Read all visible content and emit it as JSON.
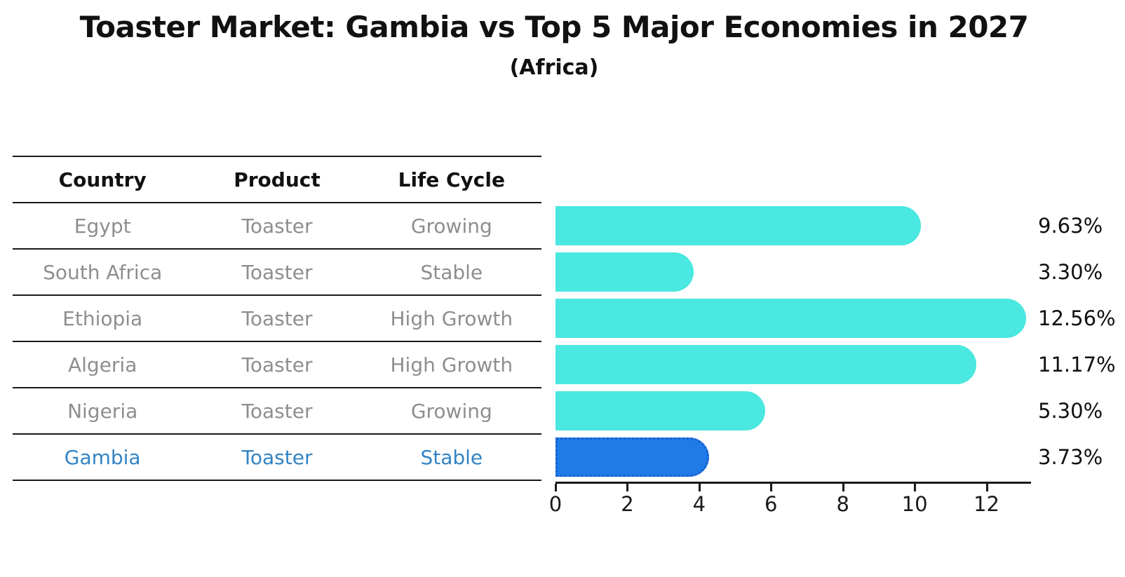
{
  "title": "Toaster Market: Gambia vs Top 5 Major Economies in 2027",
  "subtitle": "(Africa)",
  "table": {
    "headers": [
      "Country",
      "Product",
      "Life Cycle"
    ],
    "rows": [
      {
        "country": "Egypt",
        "product": "Toaster",
        "life_cycle": "Growing",
        "highlight": false
      },
      {
        "country": "South Africa",
        "product": "Toaster",
        "life_cycle": "Stable",
        "highlight": false
      },
      {
        "country": "Ethiopia",
        "product": "Toaster",
        "life_cycle": "High Growth",
        "highlight": false
      },
      {
        "country": "Algeria",
        "product": "Toaster",
        "life_cycle": "High Growth",
        "highlight": false
      },
      {
        "country": "Nigeria",
        "product": "Toaster",
        "life_cycle": "Growing",
        "highlight": false
      },
      {
        "country": "Gambia",
        "product": "Toaster",
        "life_cycle": "Stable",
        "highlight": true
      }
    ]
  },
  "chart_data": {
    "type": "bar",
    "orientation": "horizontal",
    "title": "Toaster Market: Gambia vs Top 5 Major Economies in 2027",
    "subtitle": "(Africa)",
    "categories": [
      "Egypt",
      "South Africa",
      "Ethiopia",
      "Algeria",
      "Nigeria",
      "Gambia"
    ],
    "values": [
      9.63,
      3.3,
      12.56,
      11.17,
      5.3,
      3.73
    ],
    "value_labels": [
      "9.63%",
      "3.30%",
      "12.56%",
      "11.17%",
      "5.30%",
      "3.73%"
    ],
    "highlight_category": "Gambia",
    "x_ticks": [
      0,
      2,
      4,
      6,
      8,
      10,
      12
    ],
    "xlim": [
      0,
      13.2
    ],
    "grid": false,
    "legend": false,
    "colors": {
      "bar": "#4ae8e0",
      "highlight_bar": "#1f7be8",
      "highlight_border": "#1a5ecf",
      "highlight_text": "#3383c4",
      "row_text": "#8e8e8e",
      "axis": "#1a1a1a"
    }
  }
}
